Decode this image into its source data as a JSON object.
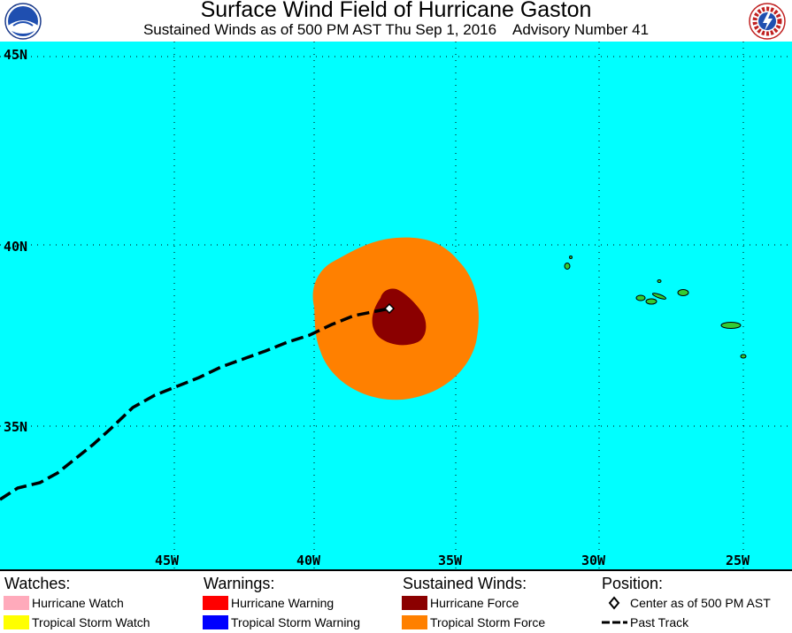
{
  "title": "Surface Wind Field of Hurricane Gaston",
  "subtitle": "Sustained Winds as of 500 PM AST Thu Sep 1, 2016    Advisory Number 41",
  "logos": {
    "left": "NOAA",
    "right": "NATIONAL WEATHER SERVICE"
  },
  "map": {
    "lat_labels": [
      "45N",
      "40N",
      "35N"
    ],
    "lon_labels": [
      "45W",
      "40W",
      "35W",
      "30W",
      "25W"
    ],
    "colors": {
      "ocean": "#00ffff",
      "land": "#33cc33",
      "hurricane_force": "#8b0000",
      "tropical_storm_force": "#ff8000",
      "grid": "#000000",
      "track": "#000000"
    }
  },
  "legend": {
    "watches": {
      "heading": "Watches:",
      "items": [
        {
          "label": "Hurricane Watch",
          "color": "#ffaabb"
        },
        {
          "label": "Tropical Storm Watch",
          "color": "#ffff00"
        }
      ]
    },
    "warnings": {
      "heading": "Warnings:",
      "items": [
        {
          "label": "Hurricane Warning",
          "color": "#ff0000"
        },
        {
          "label": "Tropical Storm Warning",
          "color": "#0000ff"
        }
      ]
    },
    "winds": {
      "heading": "Sustained Winds:",
      "items": [
        {
          "label": "Hurricane Force",
          "color": "#8b0000"
        },
        {
          "label": "Tropical Storm Force",
          "color": "#ff8000"
        }
      ]
    },
    "position": {
      "heading": "Position:",
      "items": [
        {
          "label": "Center as of 500 PM AST",
          "icon": "diamond-icon"
        },
        {
          "label": "Past Track",
          "icon": "dashed-line-icon"
        }
      ]
    }
  }
}
